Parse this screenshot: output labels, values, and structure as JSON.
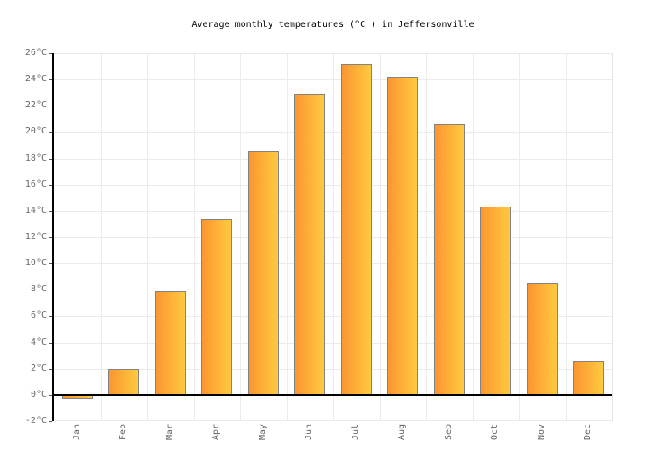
{
  "title": "Average monthly temperatures (°C ) in Jeffersonville",
  "chart_data": {
    "type": "bar",
    "title": "Average monthly temperatures (°C ) in Jeffersonville",
    "categories": [
      "Jan",
      "Feb",
      "Mar",
      "Apr",
      "May",
      "Jun",
      "Jul",
      "Aug",
      "Sep",
      "Oct",
      "Nov",
      "Dec"
    ],
    "values": [
      -0.3,
      2.0,
      7.9,
      13.4,
      18.6,
      22.9,
      25.2,
      24.2,
      20.6,
      14.3,
      8.5,
      2.6
    ],
    "unit": "°C",
    "xlabel": "",
    "ylabel": "",
    "ylim": [
      -2,
      26
    ],
    "ytick_step": 2,
    "ytick_labels": [
      "26°C",
      "24°C",
      "22°C",
      "20°C",
      "18°C",
      "16°C",
      "14°C",
      "12°C",
      "10°C",
      "8°C",
      "6°C",
      "4°C",
      "2°C",
      "0°C",
      "-2°C"
    ],
    "grid": true,
    "legend": false,
    "colors": {
      "bar_gradient_start": "#FB9632",
      "bar_gradient_end": "#FFC93F",
      "bar_border": "#828282",
      "grid_line": "#EBEBEB",
      "zero_line": "#000000",
      "axis_spine": "#000000",
      "tick_mark": "#555555",
      "tick_label": "#666666",
      "title_color": "#000000",
      "background": "#FFFFFF"
    }
  }
}
